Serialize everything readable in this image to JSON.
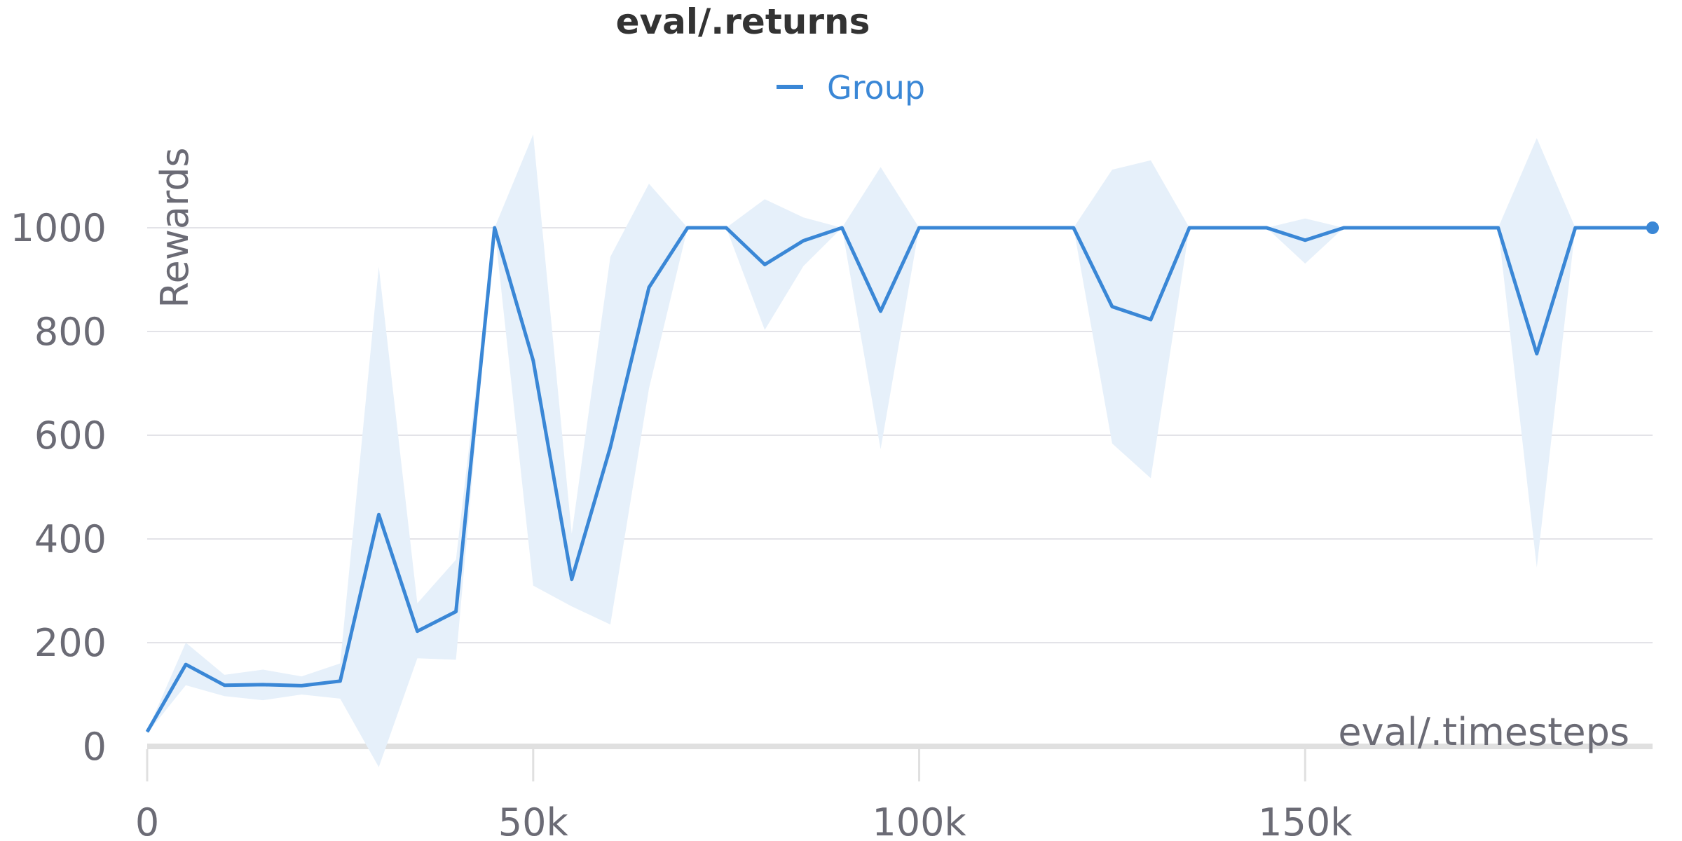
{
  "chart_data": {
    "type": "line",
    "title": "eval/.returns",
    "xlabel": "eval/.timesteps",
    "ylabel": "Rewards",
    "xlim": [
      0,
      195000
    ],
    "ylim": [
      -30,
      1150
    ],
    "xticks": [
      0,
      50000,
      100000,
      150000
    ],
    "xtick_labels": [
      "0",
      "50k",
      "100k",
      "150k"
    ],
    "yticks": [
      0,
      200,
      400,
      600,
      800,
      1000
    ],
    "ytick_labels": [
      "0",
      "200",
      "400",
      "600",
      "800",
      "1000"
    ],
    "grid": true,
    "legend_position": "top-center",
    "colors": {
      "line": "#3a87d6",
      "band": "#e6f0fa",
      "grid": "#e3e3e8",
      "baseline": "#e0e0e0"
    },
    "x": [
      0,
      5000,
      10000,
      15000,
      20000,
      25000,
      30000,
      35000,
      40000,
      45000,
      50000,
      55000,
      60000,
      65000,
      70000,
      75000,
      80000,
      85000,
      90000,
      95000,
      100000,
      105000,
      110000,
      115000,
      120000,
      125000,
      130000,
      135000,
      140000,
      145000,
      150000,
      155000,
      160000,
      165000,
      170000,
      175000,
      180000,
      185000,
      190000,
      195000
    ],
    "series": [
      {
        "name": "Group",
        "values": [
          28,
          158,
          118,
          119,
          117,
          126,
          447,
          222,
          260,
          1000,
          744,
          322,
          577,
          885,
          1000,
          1000,
          929,
          975,
          1000,
          839,
          1000,
          1000,
          1000,
          1000,
          1000,
          848,
          823,
          1000,
          1000,
          1000,
          976,
          1000,
          1000,
          1000,
          1000,
          1000,
          757,
          1000,
          1000,
          1000
        ],
        "upper": [
          30,
          200,
          138,
          148,
          135,
          160,
          925,
          276,
          360,
          1000,
          1180,
          410,
          944,
          1085,
          1000,
          1000,
          1055,
          1020,
          1000,
          1117,
          1000,
          1000,
          1000,
          1000,
          1000,
          1112,
          1130,
          1000,
          1000,
          1000,
          1018,
          1000,
          1000,
          1000,
          1000,
          1000,
          1173,
          1000,
          1000,
          1000
        ],
        "lower": [
          25,
          118,
          97,
          89,
          100,
          92,
          -40,
          170,
          167,
          1000,
          310,
          270,
          235,
          690,
          1000,
          1000,
          803,
          926,
          1000,
          573,
          1000,
          1000,
          1000,
          1000,
          1000,
          584,
          517,
          1000,
          1000,
          1000,
          931,
          1000,
          1000,
          1000,
          1000,
          1000,
          345,
          1000,
          1000,
          1000
        ]
      }
    ]
  }
}
